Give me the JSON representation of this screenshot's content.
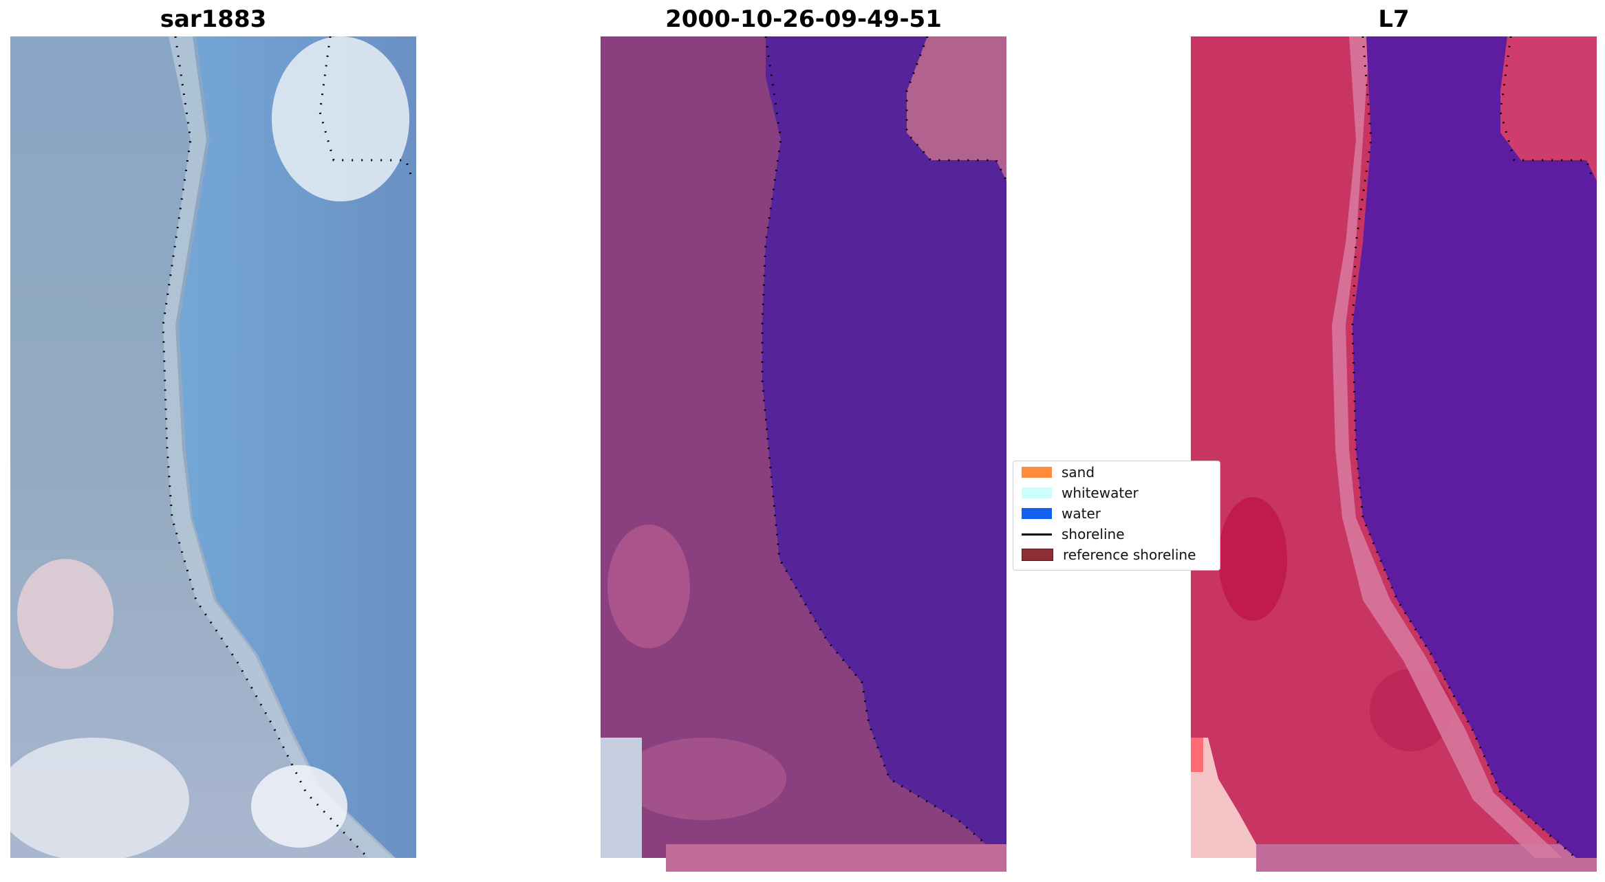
{
  "panels": [
    {
      "title": "sar1883"
    },
    {
      "title": "2000-10-26-09-49-51"
    },
    {
      "title": "L7"
    }
  ],
  "legend": {
    "items": [
      {
        "label": "sand",
        "color": "#ff8c3a",
        "kind": "patch"
      },
      {
        "label": "whitewater",
        "color": "#ccfffb",
        "kind": "patch"
      },
      {
        "label": "water",
        "color": "#1460f0",
        "kind": "patch"
      },
      {
        "label": "shoreline",
        "color": "#000000",
        "kind": "line"
      },
      {
        "label": "reference shoreline",
        "color": "#8f2f35",
        "kind": "patch"
      }
    ]
  },
  "colors": {
    "rgb_land": "#8fa7c2",
    "rgb_water": "#6e9fd0",
    "classified_land": "#8a3f7e",
    "classified_water": "#55239a",
    "ndwi_land": "#c83562",
    "ndwi_water": "#5e1ca0"
  }
}
